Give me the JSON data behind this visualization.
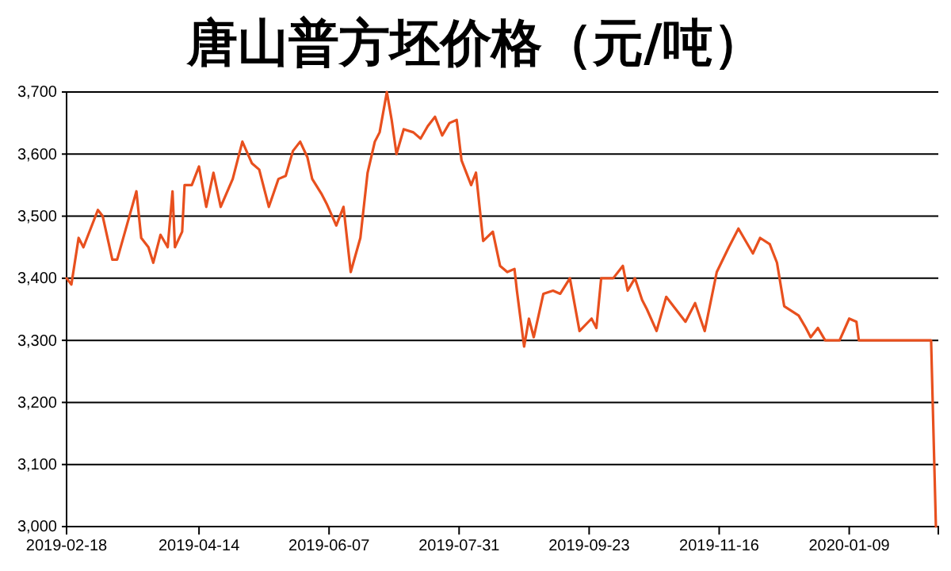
{
  "chart_data": {
    "type": "line",
    "title": "唐山普方坯价格（元/吨）",
    "x": [
      "2019-02-18",
      "2019-02-20",
      "2019-02-23",
      "2019-02-25",
      "2019-03-03",
      "2019-03-05",
      "2019-03-09",
      "2019-03-11",
      "2019-03-15",
      "2019-03-19",
      "2019-03-21",
      "2019-03-24",
      "2019-03-26",
      "2019-03-29",
      "2019-04-01",
      "2019-04-03",
      "2019-04-04",
      "2019-04-07",
      "2019-04-08",
      "2019-04-11",
      "2019-04-14",
      "2019-04-17",
      "2019-04-20",
      "2019-04-23",
      "2019-04-28",
      "2019-05-02",
      "2019-05-06",
      "2019-05-09",
      "2019-05-13",
      "2019-05-17",
      "2019-05-20",
      "2019-05-23",
      "2019-05-26",
      "2019-05-29",
      "2019-05-31",
      "2019-06-04",
      "2019-06-06",
      "2019-06-10",
      "2019-06-13",
      "2019-06-16",
      "2019-06-20",
      "2019-06-23",
      "2019-06-26",
      "2019-06-28",
      "2019-07-01",
      "2019-07-03",
      "2019-07-05",
      "2019-07-08",
      "2019-07-12",
      "2019-07-15",
      "2019-07-18",
      "2019-07-21",
      "2019-07-24",
      "2019-07-27",
      "2019-07-30",
      "2019-08-01",
      "2019-08-05",
      "2019-08-07",
      "2019-08-10",
      "2019-08-14",
      "2019-08-17",
      "2019-08-20",
      "2019-08-23",
      "2019-08-24",
      "2019-08-27",
      "2019-08-29",
      "2019-08-31",
      "2019-09-04",
      "2019-09-08",
      "2019-09-11",
      "2019-09-15",
      "2019-09-19",
      "2019-09-24",
      "2019-09-26",
      "2019-09-28",
      "2019-10-03",
      "2019-10-07",
      "2019-10-09",
      "2019-10-12",
      "2019-10-15",
      "2019-10-17",
      "2019-10-21",
      "2019-10-25",
      "2019-10-29",
      "2019-11-02",
      "2019-11-06",
      "2019-11-10",
      "2019-11-15",
      "2019-11-20",
      "2019-11-24",
      "2019-11-30",
      "2019-12-03",
      "2019-12-07",
      "2019-12-10",
      "2019-12-13",
      "2019-12-19",
      "2019-12-22",
      "2019-12-24",
      "2019-12-27",
      "2019-12-30",
      "2020-01-05",
      "2020-01-09",
      "2020-01-12",
      "2020-01-13",
      "2020-02-12",
      "2020-02-14"
    ],
    "series": [
      {
        "color": "#e8501e",
        "values": [
          3400,
          3390,
          3465,
          3450,
          3510,
          3500,
          3430,
          3430,
          3485,
          3540,
          3465,
          3450,
          3425,
          3470,
          3450,
          3540,
          3450,
          3475,
          3550,
          3550,
          3580,
          3515,
          3570,
          3515,
          3560,
          3620,
          3585,
          3575,
          3515,
          3560,
          3565,
          3605,
          3620,
          3595,
          3560,
          3535,
          3520,
          3485,
          3515,
          3410,
          3465,
          3570,
          3620,
          3635,
          3700,
          3655,
          3600,
          3640,
          3635,
          3625,
          3645,
          3660,
          3630,
          3650,
          3655,
          3590,
          3550,
          3570,
          3460,
          3475,
          3420,
          3410,
          3415,
          3380,
          3290,
          3335,
          3305,
          3375,
          3380,
          3375,
          3400,
          3315,
          3335,
          3320,
          3400,
          3400,
          3420,
          3380,
          3400,
          3365,
          3350,
          3315,
          3370,
          3350,
          3330,
          3360,
          3315,
          3410,
          3450,
          3480,
          3440,
          3465,
          3455,
          3425,
          3355,
          3340,
          3320,
          3305,
          3320,
          3300,
          3300,
          3335,
          3330,
          3300,
          3300,
          3000
        ]
      }
    ],
    "xlim": [
      "2019-02-18",
      "2020-02-15"
    ],
    "xticks": [
      "2019-02-18",
      "2019-04-14",
      "2019-06-07",
      "2019-07-31",
      "2019-09-23",
      "2019-11-16",
      "2020-01-09"
    ],
    "ylim": [
      3000,
      3700
    ],
    "yticks": [
      {
        "value": 3000,
        "label": "3,000"
      },
      {
        "value": 3100,
        "label": "3,100"
      },
      {
        "value": 3200,
        "label": "3,200"
      },
      {
        "value": 3300,
        "label": "3,300"
      },
      {
        "value": 3400,
        "label": "3,400"
      },
      {
        "value": 3500,
        "label": "3,500"
      },
      {
        "value": 3600,
        "label": "3,600"
      },
      {
        "value": 3700,
        "label": "3,700"
      }
    ],
    "grid": "y",
    "marker": "none",
    "line_style": "solid"
  }
}
